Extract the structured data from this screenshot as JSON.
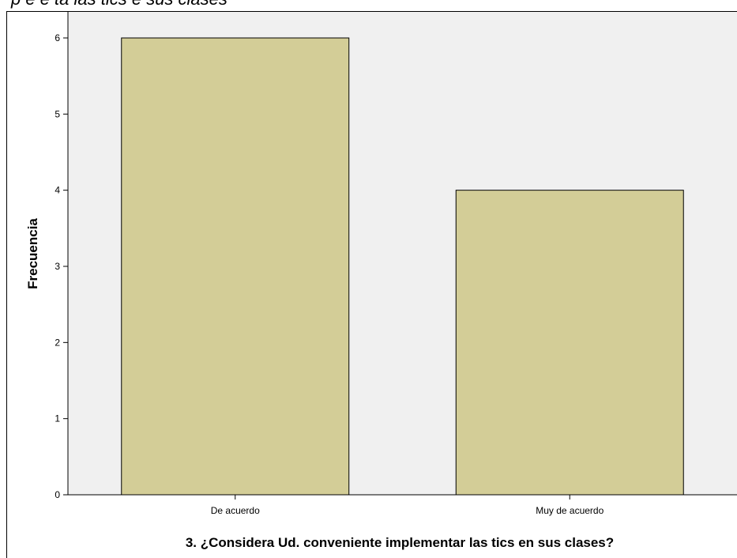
{
  "chart_data": {
    "type": "bar",
    "categories": [
      "De acuerdo",
      "Muy de acuerdo"
    ],
    "values": [
      6,
      4
    ],
    "title": "",
    "xlabel": "3. ¿Considera Ud. conveniente implementar las tics en sus clases?",
    "ylabel": "Frecuencia",
    "ylim": [
      0,
      6.4
    ],
    "yticks": [
      0,
      1,
      2,
      3,
      4,
      5,
      6
    ],
    "grid": false,
    "bar_color": "#d3cd97",
    "plot_background": "#f0f0f0"
  }
}
